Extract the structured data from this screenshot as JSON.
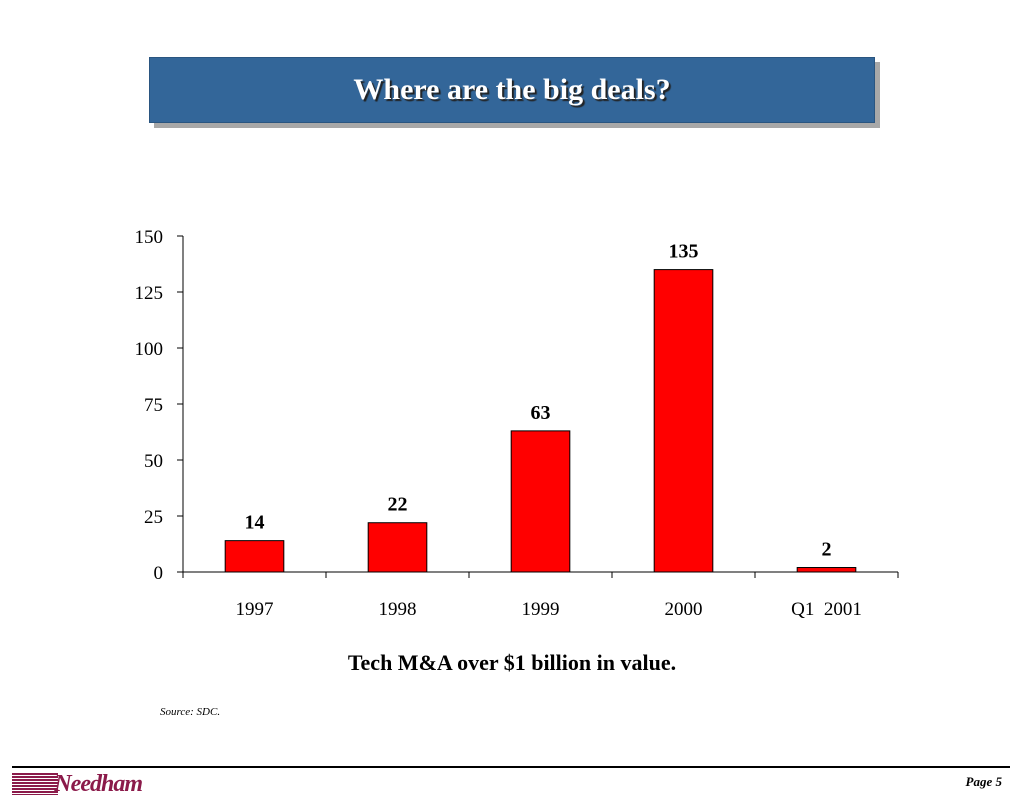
{
  "slide": {
    "title": "Where are the big deals?",
    "caption": "Tech M&A over $1 billion in value.",
    "source": "Source:  SDC.",
    "logo_text": "Needham",
    "page_label": "Page 5"
  },
  "colors": {
    "title_bg": "#336699",
    "bar_fill": "#ff0000",
    "logo": "#8b1a4a"
  },
  "chart_data": {
    "type": "bar",
    "categories": [
      "1997",
      "1998",
      "1999",
      "2000",
      "Q1  2001"
    ],
    "values": [
      14,
      22,
      63,
      135,
      2
    ],
    "data_labels": [
      "14",
      "22",
      "63",
      "135",
      "2"
    ],
    "title": "",
    "xlabel": "",
    "ylabel": "",
    "ylim": [
      0,
      150
    ],
    "yticks": [
      0,
      25,
      50,
      75,
      100,
      125,
      150
    ],
    "grid": false,
    "legend": "none"
  }
}
